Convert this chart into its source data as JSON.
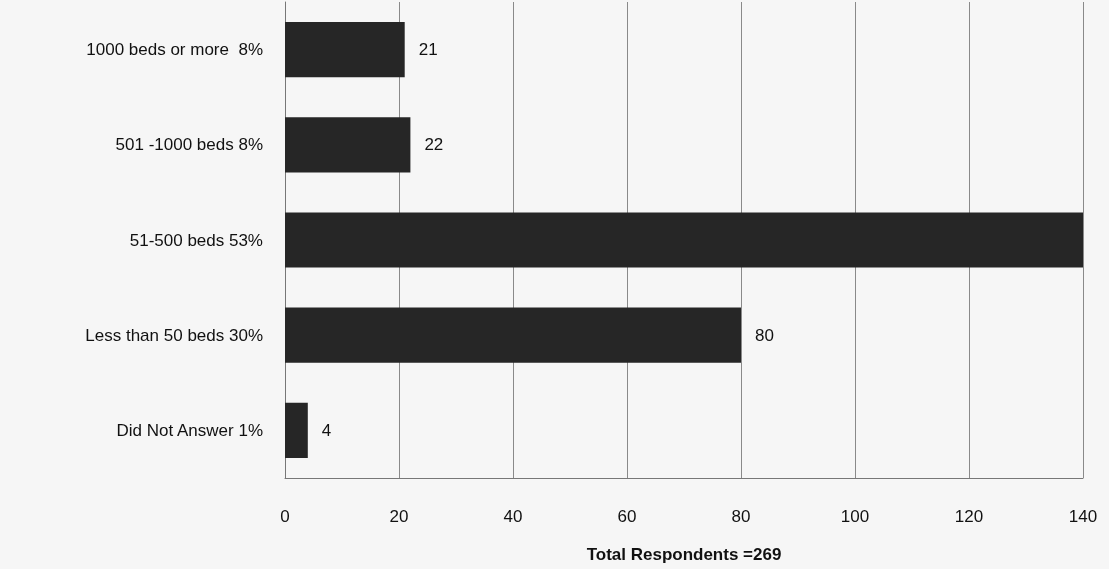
{
  "chart_data": {
    "type": "bar",
    "orientation": "horizontal",
    "categories": [
      "1000 beds or more  8%",
      "501 -1000 beds 8%",
      "51-500 beds 53%",
      "Less than 50 beds 30%",
      "Did Not Answer 1%"
    ],
    "values": [
      21,
      22,
      140,
      80,
      4
    ],
    "value_labels": [
      "21",
      "22",
      null,
      "80",
      "4"
    ],
    "color": "#262626",
    "xlim": [
      0,
      140
    ],
    "xticks": [
      0,
      20,
      40,
      60,
      80,
      100,
      120,
      140
    ],
    "xlabel": "Total Respondents =269",
    "grid": "x"
  }
}
